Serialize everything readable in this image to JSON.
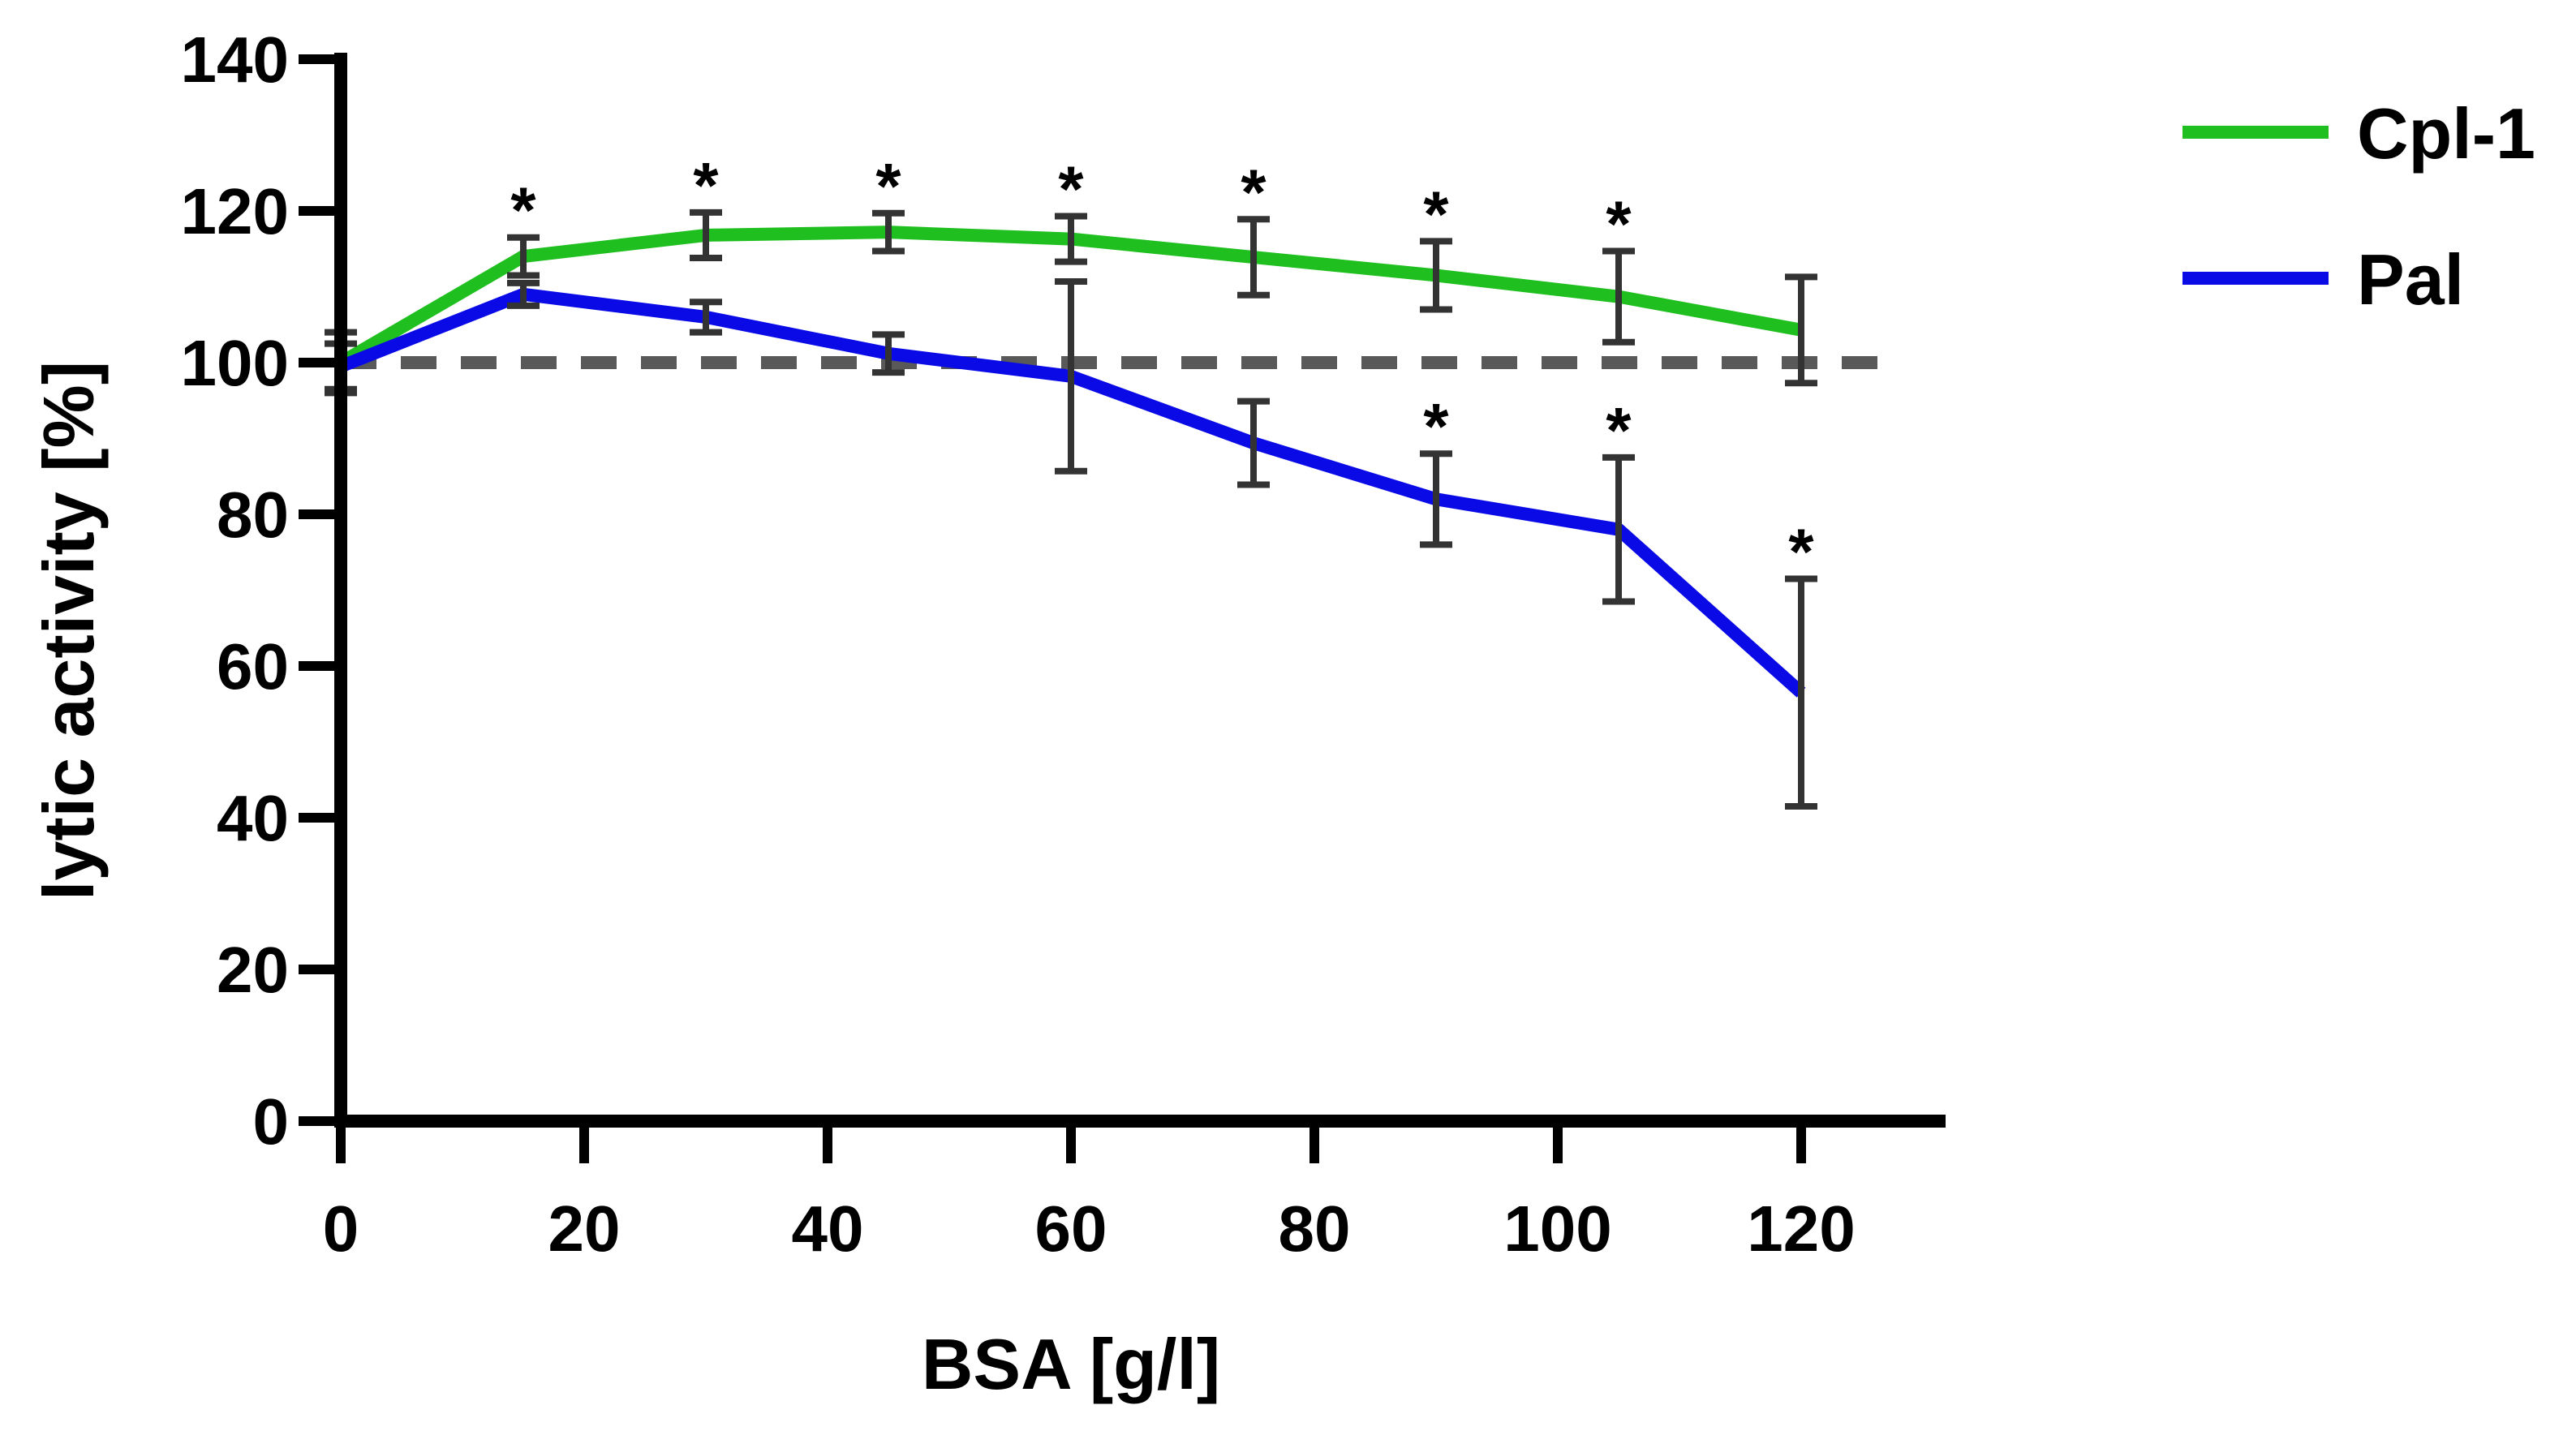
{
  "chart_data": {
    "type": "line",
    "title": "",
    "xlabel": "BSA [g/l]",
    "ylabel": "lytic activity [%]",
    "xlim": [
      0,
      130
    ],
    "ylim": [
      0,
      140
    ],
    "xticks": [
      0,
      20,
      40,
      60,
      80,
      100,
      120
    ],
    "yticks": [
      0,
      20,
      40,
      60,
      80,
      100,
      120,
      140
    ],
    "x": [
      0,
      15,
      30,
      45,
      60,
      75,
      90,
      105,
      120
    ],
    "reference_line": {
      "y": 100,
      "style": "dashed",
      "color": "#595959"
    },
    "legend_position": "top-right",
    "series": [
      {
        "name": "Cpl-1",
        "color": "#1fbf1f",
        "values": [
          100,
          114,
          116.8,
          117.2,
          116.3,
          113.9,
          111.5,
          108.7,
          104.3
        ],
        "errors": [
          4,
          2.5,
          3,
          2.5,
          3,
          5,
          4.5,
          6,
          7
        ],
        "significant": [
          false,
          true,
          true,
          true,
          true,
          true,
          true,
          true,
          false
        ]
      },
      {
        "name": "Pal",
        "color": "#0a0ae6",
        "values": [
          99.5,
          109,
          106,
          101.2,
          98.2,
          89.4,
          82,
          78,
          56.5
        ],
        "errors": [
          3,
          1.5,
          2,
          2.5,
          12.5,
          5.5,
          6,
          9.5,
          15
        ],
        "significant": [
          false,
          false,
          false,
          false,
          false,
          false,
          true,
          true,
          true
        ]
      }
    ],
    "significance_marker": "*",
    "errorbar_color": "#333333"
  }
}
